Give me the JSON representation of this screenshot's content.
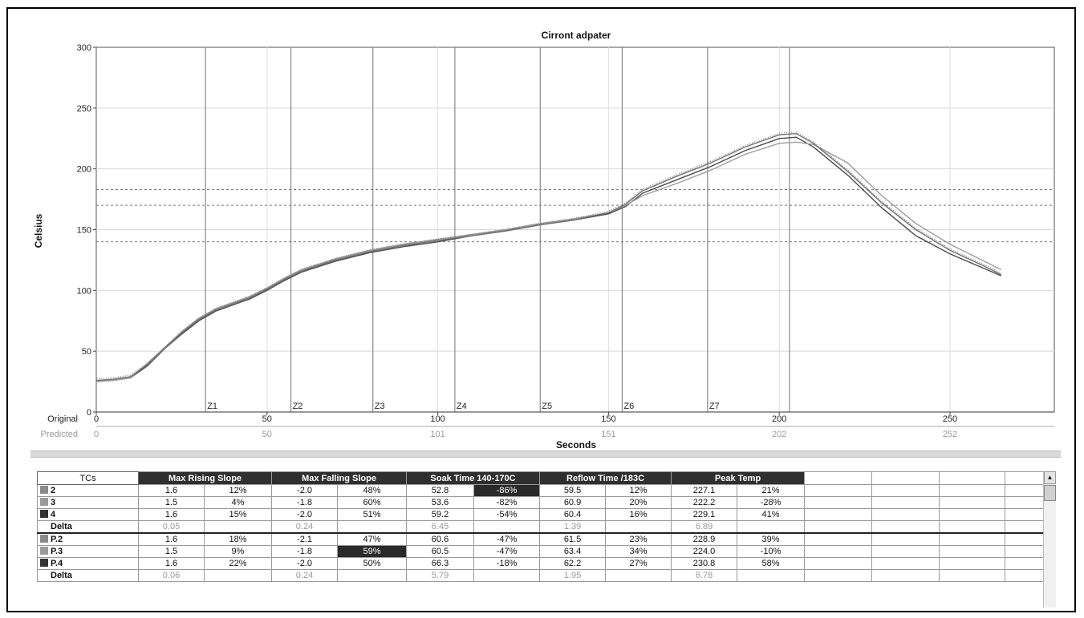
{
  "chart_data": {
    "type": "line",
    "title": "Cirront adpater",
    "xlabel": "Seconds",
    "ylabel": "Celsius",
    "xlim": [
      0,
      280
    ],
    "ylim": [
      0,
      300
    ],
    "yticks": [
      "0",
      "50",
      "100",
      "150",
      "200",
      "250",
      "300"
    ],
    "x_axis_original": {
      "label": "Original",
      "ticks": [
        "0",
        "50",
        "100",
        "150",
        "200",
        "250"
      ]
    },
    "x_axis_predicted": {
      "label": "Predicted",
      "ticks": [
        "0",
        "50",
        "101",
        "151",
        "202",
        "252"
      ]
    },
    "zones": [
      {
        "label": "Z1",
        "x": 32
      },
      {
        "label": "Z2",
        "x": 57
      },
      {
        "label": "Z3",
        "x": 81
      },
      {
        "label": "Z4",
        "x": 105
      },
      {
        "label": "Z5",
        "x": 130
      },
      {
        "label": "Z6",
        "x": 154
      },
      {
        "label": "Z7",
        "x": 179
      },
      {
        "label": "",
        "x": 203
      }
    ],
    "reference_lines": [
      183,
      170,
      140
    ],
    "series": [
      {
        "values": [
          [
            0,
            25
          ],
          [
            5,
            26
          ],
          [
            10,
            28
          ],
          [
            15,
            38
          ],
          [
            20,
            52
          ],
          [
            25,
            64
          ],
          [
            30,
            75
          ],
          [
            35,
            83
          ],
          [
            40,
            88
          ],
          [
            45,
            93
          ],
          [
            50,
            100
          ],
          [
            55,
            108
          ],
          [
            60,
            115
          ],
          [
            70,
            124
          ],
          [
            80,
            131
          ],
          [
            90,
            136
          ],
          [
            100,
            140
          ],
          [
            110,
            145
          ],
          [
            120,
            149
          ],
          [
            130,
            154
          ],
          [
            140,
            158
          ],
          [
            150,
            163
          ],
          [
            155,
            169
          ],
          [
            160,
            180
          ],
          [
            170,
            191
          ],
          [
            180,
            202
          ],
          [
            190,
            215
          ],
          [
            200,
            225
          ],
          [
            205,
            226
          ],
          [
            210,
            218
          ],
          [
            220,
            195
          ],
          [
            230,
            168
          ],
          [
            240,
            145
          ],
          [
            250,
            130
          ],
          [
            260,
            118
          ],
          [
            265,
            112
          ]
        ]
      },
      {
        "values": [
          [
            0,
            25
          ],
          [
            5,
            26
          ],
          [
            10,
            28
          ],
          [
            15,
            40
          ],
          [
            20,
            53
          ],
          [
            25,
            66
          ],
          [
            30,
            77
          ],
          [
            35,
            85
          ],
          [
            40,
            90
          ],
          [
            45,
            95
          ],
          [
            50,
            102
          ],
          [
            55,
            110
          ],
          [
            60,
            117
          ],
          [
            70,
            126
          ],
          [
            80,
            133
          ],
          [
            90,
            138
          ],
          [
            100,
            142
          ],
          [
            110,
            146
          ],
          [
            120,
            150
          ],
          [
            130,
            155
          ],
          [
            140,
            159
          ],
          [
            150,
            164
          ],
          [
            155,
            170
          ],
          [
            160,
            178
          ],
          [
            170,
            188
          ],
          [
            180,
            199
          ],
          [
            190,
            212
          ],
          [
            200,
            221
          ],
          [
            205,
            222
          ],
          [
            210,
            220
          ],
          [
            220,
            205
          ],
          [
            230,
            178
          ],
          [
            240,
            155
          ],
          [
            250,
            138
          ],
          [
            260,
            124
          ],
          [
            265,
            117
          ]
        ]
      },
      {
        "values": [
          [
            0,
            26
          ],
          [
            5,
            27
          ],
          [
            10,
            29
          ],
          [
            15,
            39
          ],
          [
            20,
            52
          ],
          [
            25,
            65
          ],
          [
            30,
            76
          ],
          [
            35,
            84
          ],
          [
            40,
            89
          ],
          [
            45,
            94
          ],
          [
            50,
            101
          ],
          [
            55,
            109
          ],
          [
            60,
            116
          ],
          [
            70,
            125
          ],
          [
            80,
            132
          ],
          [
            90,
            137
          ],
          [
            100,
            141
          ],
          [
            110,
            145
          ],
          [
            120,
            149
          ],
          [
            130,
            154
          ],
          [
            140,
            158
          ],
          [
            150,
            164
          ],
          [
            155,
            171
          ],
          [
            160,
            182
          ],
          [
            170,
            194
          ],
          [
            180,
            205
          ],
          [
            190,
            218
          ],
          [
            200,
            228
          ],
          [
            205,
            229
          ],
          [
            210,
            221
          ],
          [
            220,
            198
          ],
          [
            230,
            172
          ],
          [
            240,
            150
          ],
          [
            250,
            133
          ],
          [
            260,
            120
          ],
          [
            265,
            113
          ]
        ]
      }
    ]
  },
  "table": {
    "headers": [
      "TCs",
      "Max Rising Slope",
      "Max Falling Slope",
      "Soak Time 140-170C",
      "Reflow Time /183C",
      "Peak Temp"
    ],
    "rows": [
      {
        "name": "2",
        "swatch": "#8a8a8a",
        "cells": [
          "1.6",
          "12%",
          "-2.0",
          "48%",
          "52.8",
          "-86%",
          "59.5",
          "12%",
          "227.1",
          "21%"
        ],
        "highlight": 5
      },
      {
        "name": "3",
        "swatch": "#9a9a9a",
        "cells": [
          "1.5",
          "4%",
          "-1.8",
          "60%",
          "53.6",
          "-82%",
          "60.9",
          "20%",
          "222.2",
          "-28%"
        ]
      },
      {
        "name": "4",
        "swatch": "#333333",
        "cells": [
          "1.6",
          "15%",
          "-2.0",
          "51%",
          "59.2",
          "-54%",
          "60.4",
          "16%",
          "229.1",
          "41%"
        ]
      },
      {
        "name": "Delta",
        "delta": true,
        "cells": [
          "0.05",
          "",
          "0.24",
          "",
          "6.45",
          "",
          "1.39",
          "",
          "6.89",
          ""
        ]
      },
      {
        "name": "P.2",
        "swatch": "#8a8a8a",
        "sep": true,
        "cells": [
          "1.6",
          "18%",
          "-2.1",
          "47%",
          "60.6",
          "-47%",
          "61.5",
          "23%",
          "228.9",
          "39%"
        ]
      },
      {
        "name": "P.3",
        "swatch": "#9a9a9a",
        "cells": [
          "1.5",
          "9%",
          "-1.8",
          "59%",
          "60.5",
          "-47%",
          "63.4",
          "34%",
          "224.0",
          "-10%"
        ],
        "highlight": 3
      },
      {
        "name": "P.4",
        "swatch": "#333333",
        "cells": [
          "1.6",
          "22%",
          "-2.0",
          "50%",
          "66.3",
          "-18%",
          "62.2",
          "27%",
          "230.8",
          "58%"
        ]
      },
      {
        "name": "Delta",
        "delta": true,
        "cells": [
          "0.06",
          "",
          "0.24",
          "",
          "5.79",
          "",
          "1.95",
          "",
          "6.78",
          ""
        ]
      }
    ]
  },
  "colors": {
    "series_dark": "#555555",
    "series_light": "#aaaaaa",
    "header_bg": "#2f2f2f",
    "highlight_bg": "#2a2a2a"
  }
}
